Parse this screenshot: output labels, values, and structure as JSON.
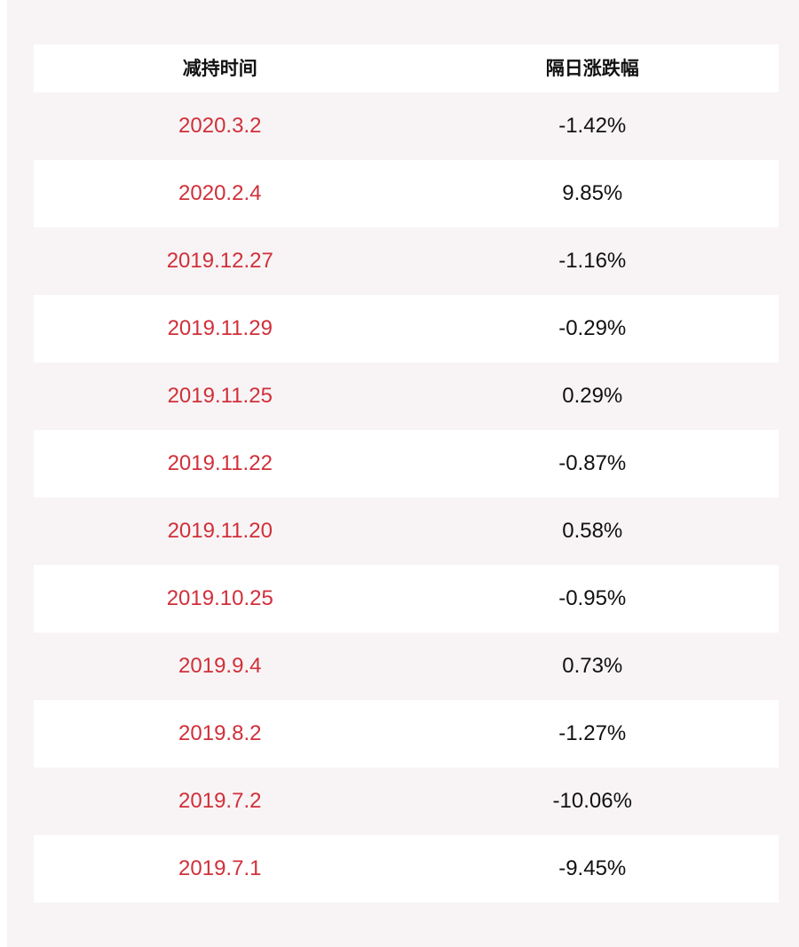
{
  "colors": {
    "date_text": "#d0303a",
    "value_text": "#111111",
    "stripe": "#f8f4f5",
    "row": "#ffffff"
  },
  "table": {
    "headers": [
      "减持时间",
      "隔日涨跌幅"
    ],
    "rows": [
      {
        "date": "2020.3.2",
        "change": "-1.42%"
      },
      {
        "date": "2020.2.4",
        "change": "9.85%"
      },
      {
        "date": "2019.12.27",
        "change": "-1.16%"
      },
      {
        "date": "2019.11.29",
        "change": "-0.29%"
      },
      {
        "date": "2019.11.25",
        "change": "0.29%"
      },
      {
        "date": "2019.11.22",
        "change": "-0.87%"
      },
      {
        "date": "2019.11.20",
        "change": "0.58%"
      },
      {
        "date": "2019.10.25",
        "change": "-0.95%"
      },
      {
        "date": "2019.9.4",
        "change": "0.73%"
      },
      {
        "date": "2019.8.2",
        "change": "-1.27%"
      },
      {
        "date": "2019.7.2",
        "change": "-10.06%"
      },
      {
        "date": "2019.7.1",
        "change": "-9.45%"
      }
    ]
  }
}
